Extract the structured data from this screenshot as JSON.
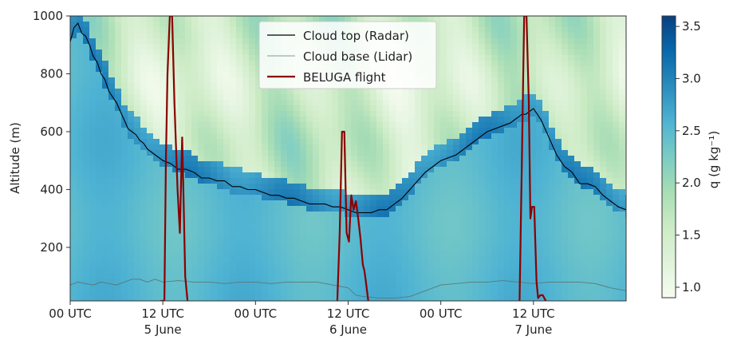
{
  "chart_data": {
    "type": "heatmap",
    "ylabel": "Altitude (m)",
    "ylim": [
      15,
      1000
    ],
    "yticks": [
      200,
      400,
      600,
      800,
      1000
    ],
    "x_unit": "hours since 00 UTC 5 June",
    "xlim": [
      0,
      60
    ],
    "xticks": [
      {
        "x": 0,
        "label": "00 UTC",
        "date": ""
      },
      {
        "x": 12,
        "label": "12 UTC",
        "date": "5 June"
      },
      {
        "x": 24,
        "label": "00 UTC",
        "date": ""
      },
      {
        "x": 36,
        "label": "12 UTC",
        "date": "6 June"
      },
      {
        "x": 48,
        "label": "00 UTC",
        "date": ""
      },
      {
        "x": 60,
        "label": "12 UTC",
        "date": "7 June"
      }
    ],
    "colorbar": {
      "label": "q (g kg⁻¹)",
      "range": [
        0.9,
        3.6
      ],
      "ticks": [
        "1.0",
        "1.5",
        "2.0",
        "2.5",
        "3.0",
        "3.5"
      ],
      "tick_values": [
        1.0,
        1.5,
        2.0,
        2.5,
        3.0,
        3.5
      ],
      "colors": [
        "#f7fcf0",
        "#e0f3db",
        "#ccebc5",
        "#a8ddb5",
        "#7bccc4",
        "#4eb3d3",
        "#2b8cbe",
        "#0868ac",
        "#084081"
      ]
    },
    "legend": {
      "placement": "upper-center",
      "entries": [
        {
          "label": "Cloud top (Radar)",
          "color": "#000000"
        },
        {
          "label": "Cloud base (Lidar)",
          "color": "#5a7878"
        },
        {
          "label": "BELUGA flight",
          "color": "#8b0000"
        }
      ]
    },
    "series": [
      {
        "name": "Cloud top (Radar)",
        "x": [
          0,
          0.5,
          1,
          1.5,
          2,
          2.5,
          3,
          3.5,
          4,
          4.5,
          5,
          5.5,
          6,
          6.5,
          7,
          7.5,
          8,
          8.5,
          9,
          9.5,
          10,
          11,
          12,
          13,
          14,
          15,
          16,
          17,
          18,
          19,
          20,
          21,
          22,
          23,
          24,
          25,
          26,
          27,
          28,
          29,
          30,
          31,
          32,
          33,
          34,
          35,
          36,
          37,
          38,
          39,
          40,
          41,
          42,
          43,
          44,
          45,
          46,
          47,
          48,
          49,
          50,
          51,
          52,
          53,
          54,
          55,
          56,
          57,
          57.5,
          58,
          58.5,
          59,
          59.5,
          60,
          60.5,
          61,
          62,
          63,
          64,
          65,
          66,
          67,
          68,
          69,
          70,
          71,
          72
        ],
        "y": [
          910,
          960,
          975,
          940,
          930,
          900,
          860,
          840,
          800,
          780,
          740,
          720,
          700,
          670,
          640,
          610,
          600,
          590,
          570,
          560,
          540,
          520,
          500,
          490,
          470,
          470,
          460,
          440,
          440,
          430,
          430,
          410,
          410,
          400,
          400,
          390,
          380,
          380,
          370,
          370,
          360,
          350,
          350,
          350,
          340,
          340,
          330,
          320,
          320,
          320,
          330,
          330,
          350,
          370,
          400,
          430,
          460,
          480,
          500,
          510,
          520,
          540,
          560,
          580,
          600,
          610,
          620,
          630,
          640,
          650,
          660,
          660,
          670,
          680,
          660,
          640,
          580,
          520,
          480,
          460,
          420,
          420,
          410,
          380,
          360,
          340,
          330
        ]
      },
      {
        "name": "Cloud base (Lidar)",
        "x": [
          0,
          1,
          2,
          3,
          4,
          5,
          6,
          7,
          8,
          9,
          10,
          11,
          12,
          14,
          16,
          18,
          20,
          22,
          24,
          26,
          28,
          30,
          32,
          34,
          36,
          37,
          38,
          40,
          42,
          44,
          46,
          48,
          50,
          52,
          54,
          56,
          58,
          60,
          62,
          64,
          66,
          68,
          70,
          72
        ],
        "y": [
          70,
          80,
          75,
          70,
          80,
          75,
          70,
          80,
          90,
          90,
          80,
          90,
          80,
          85,
          80,
          80,
          75,
          80,
          80,
          75,
          80,
          80,
          80,
          70,
          60,
          35,
          30,
          25,
          25,
          30,
          50,
          70,
          75,
          80,
          80,
          85,
          80,
          75,
          80,
          80,
          80,
          75,
          60,
          50
        ]
      },
      {
        "name": "BELUGA flight",
        "x": [
          11.7,
          12.2,
          12.4,
          12.6,
          12.9,
          13.2,
          13.5,
          13.9,
          14.2,
          14.5,
          14.7,
          14.9,
          15.2,
          34.6,
          34.9,
          35.2,
          35.5,
          35.8,
          36.1,
          36.4,
          36.7,
          37.0,
          37.3,
          37.6,
          37.9,
          38.1,
          38.3,
          38.6,
          58.2,
          58.5,
          58.8,
          59.1,
          59.4,
          59.6,
          59.8,
          60.1,
          60.4,
          60.6,
          60.9,
          61.2,
          61.6
        ],
        "y": [
          15,
          15,
          500,
          800,
          1000,
          1000,
          700,
          400,
          250,
          580,
          350,
          100,
          15,
          15,
          250,
          600,
          600,
          250,
          220,
          380,
          330,
          360,
          300,
          230,
          140,
          120,
          80,
          15,
          15,
          500,
          1000,
          1000,
          700,
          300,
          340,
          340,
          80,
          25,
          35,
          35,
          15
        ]
      }
    ]
  }
}
